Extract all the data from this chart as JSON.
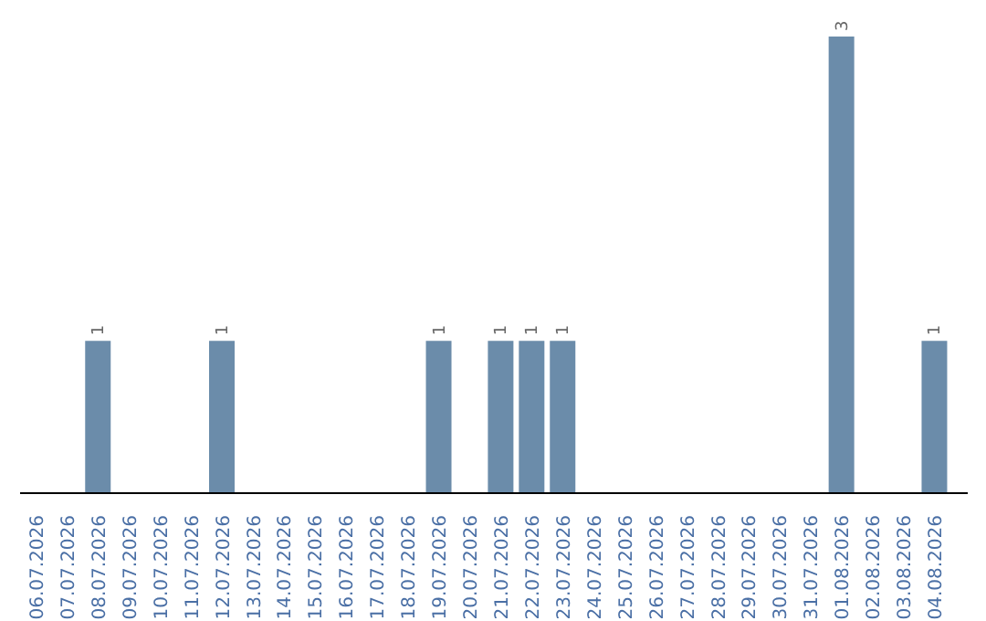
{
  "chart_data": {
    "type": "bar",
    "categories": [
      "06.07.2026",
      "07.07.2026",
      "08.07.2026",
      "09.07.2026",
      "10.07.2026",
      "11.07.2026",
      "12.07.2026",
      "13.07.2026",
      "14.07.2026",
      "15.07.2026",
      "16.07.2026",
      "17.07.2026",
      "18.07.2026",
      "19.07.2026",
      "20.07.2026",
      "21.07.2026",
      "22.07.2026",
      "23.07.2026",
      "24.07.2026",
      "25.07.2026",
      "26.07.2026",
      "27.07.2026",
      "28.07.2026",
      "29.07.2026",
      "30.07.2026",
      "31.07.2026",
      "01.08.2026",
      "02.08.2026",
      "03.08.2026",
      "04.08.2026"
    ],
    "values": [
      0,
      0,
      1,
      0,
      0,
      0,
      1,
      0,
      0,
      0,
      0,
      0,
      0,
      1,
      0,
      1,
      1,
      1,
      0,
      0,
      0,
      0,
      0,
      0,
      0,
      0,
      3,
      0,
      0,
      1
    ],
    "value_labels": [
      null,
      null,
      "1",
      null,
      null,
      null,
      "1",
      null,
      null,
      null,
      null,
      null,
      null,
      "1",
      null,
      "1",
      "1",
      "1",
      null,
      null,
      null,
      null,
      null,
      null,
      null,
      null,
      "3",
      null,
      null,
      "1"
    ],
    "color": "#6b8caa",
    "ylim": [
      0,
      3
    ],
    "tick_labels": "x",
    "grid": false
  }
}
